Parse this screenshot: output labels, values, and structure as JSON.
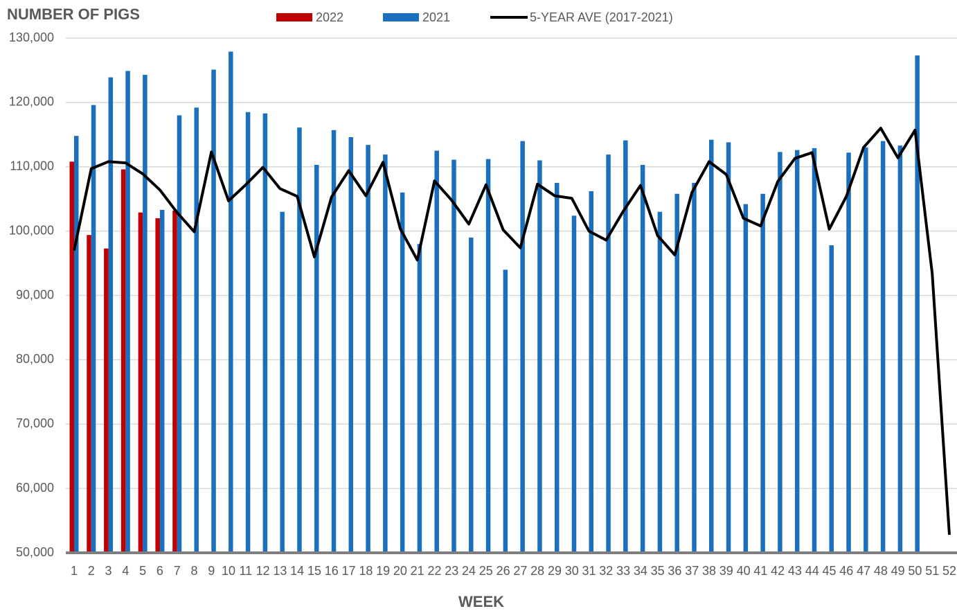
{
  "chart_data": {
    "type": "bar_line",
    "title": "NUMBER OF PIGS",
    "x_label": "WEEK",
    "categories": [
      1,
      2,
      3,
      4,
      5,
      6,
      7,
      8,
      9,
      10,
      11,
      12,
      13,
      14,
      15,
      16,
      17,
      18,
      19,
      20,
      21,
      22,
      23,
      24,
      25,
      26,
      27,
      28,
      29,
      30,
      31,
      32,
      33,
      34,
      35,
      36,
      37,
      38,
      39,
      40,
      41,
      42,
      43,
      44,
      45,
      46,
      47,
      48,
      49,
      50,
      51,
      52
    ],
    "ylim": [
      50000,
      130000
    ],
    "yticks": [
      {
        "value": 50000,
        "label": "50,000"
      },
      {
        "value": 60000,
        "label": "60,000"
      },
      {
        "value": 70000,
        "label": "70,000"
      },
      {
        "value": 80000,
        "label": "80,000"
      },
      {
        "value": 90000,
        "label": "90,000"
      },
      {
        "value": 100000,
        "label": "100,000"
      },
      {
        "value": 110000,
        "label": "110,000"
      },
      {
        "value": 120000,
        "label": "120,000"
      },
      {
        "value": 130000,
        "label": "130,000"
      }
    ],
    "grid": true,
    "legend": "top",
    "series": [
      {
        "name": "2022",
        "kind": "bar",
        "color": "#c00000",
        "values": [
          110800,
          99400,
          97300,
          109600,
          102900,
          102000,
          103200,
          null,
          null,
          null,
          null,
          null,
          null,
          null,
          null,
          null,
          null,
          null,
          null,
          null,
          null,
          null,
          null,
          null,
          null,
          null,
          null,
          null,
          null,
          null,
          null,
          null,
          null,
          null,
          null,
          null,
          null,
          null,
          null,
          null,
          null,
          null,
          null,
          null,
          null,
          null,
          null,
          null,
          null,
          null,
          null,
          null
        ]
      },
      {
        "name": "2021",
        "kind": "bar",
        "color": "#1a6fbe",
        "values": [
          114800,
          119600,
          123900,
          124900,
          124300,
          103300,
          118000,
          119200,
          125100,
          127900,
          118500,
          118300,
          103000,
          116100,
          110300,
          115700,
          114600,
          113400,
          111900,
          106000,
          98000,
          112500,
          111100,
          99000,
          111200,
          94000,
          114000,
          111000,
          107500,
          102400,
          106200,
          111900,
          114100,
          110300,
          103000,
          105800,
          107500,
          114200,
          113800,
          104200,
          105800,
          112300,
          112600,
          112900,
          97800,
          112200,
          113000,
          114000,
          113300,
          127300,
          null,
          null
        ]
      },
      {
        "name": "5-YEAR AVE (2017-2021)",
        "kind": "line",
        "color": "#000000",
        "values": [
          97000,
          109700,
          110800,
          110600,
          108900,
          106400,
          102900,
          99900,
          112300,
          104700,
          107200,
          109900,
          106600,
          105400,
          96000,
          105300,
          109400,
          105500,
          110700,
          100400,
          95500,
          107800,
          104800,
          101100,
          107200,
          100200,
          97400,
          107300,
          105500,
          105100,
          100000,
          98600,
          103100,
          107100,
          99300,
          96300,
          106000,
          110800,
          108800,
          102000,
          100800,
          107700,
          111300,
          112200,
          100300,
          105400,
          113000,
          116000,
          111400,
          115700,
          93400,
          52800
        ]
      }
    ]
  }
}
